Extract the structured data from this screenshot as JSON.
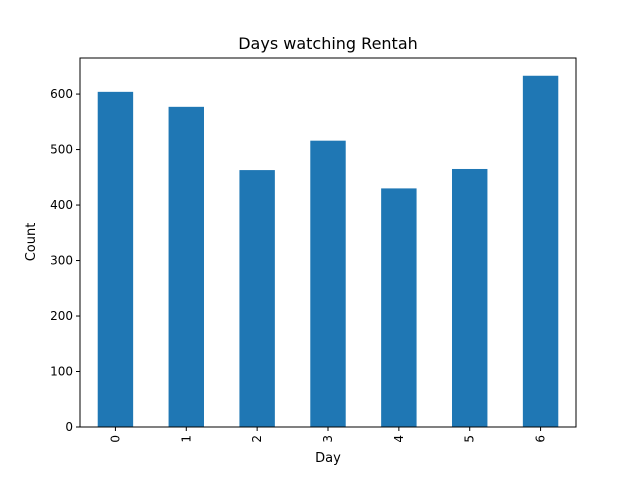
{
  "chart_data": {
    "type": "bar",
    "title": "Days watching Rentah",
    "xlabel": "Day",
    "ylabel": "Count",
    "categories": [
      "0",
      "1",
      "2",
      "3",
      "4",
      "5",
      "6"
    ],
    "values": [
      604,
      577,
      463,
      516,
      430,
      465,
      633
    ],
    "ylim": [
      0,
      665
    ],
    "yticks": [
      0,
      100,
      200,
      300,
      400,
      500,
      600
    ],
    "bar_color": "#1f77b4",
    "grid": false,
    "legend": "none",
    "x_tick_rotation": "vertical"
  }
}
